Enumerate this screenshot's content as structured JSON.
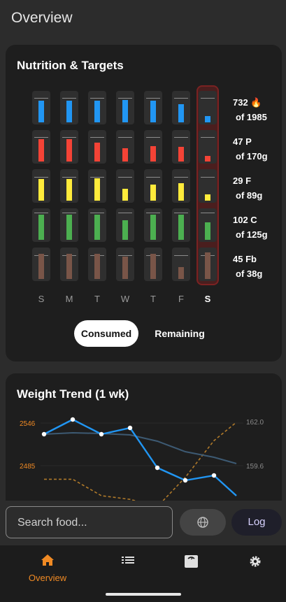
{
  "page": {
    "title": "Overview"
  },
  "nutrition": {
    "title": "Nutrition & Targets",
    "days": [
      "S",
      "M",
      "T",
      "W",
      "T",
      "F",
      "S"
    ],
    "today_index": 6,
    "rows": [
      {
        "key": "calories",
        "color": "#2196f3",
        "line": "732 🔥",
        "sub": "of 1985",
        "fills": [
          0.82,
          0.82,
          0.82,
          0.85,
          0.82,
          0.68,
          0.25
        ],
        "target": 0.84
      },
      {
        "key": "protein",
        "color": "#f44336",
        "line": "47 P",
        "sub": "of 170g",
        "fills": [
          0.85,
          0.85,
          0.72,
          0.5,
          0.58,
          0.55,
          0.2
        ],
        "target": 0.84
      },
      {
        "key": "fat",
        "color": "#ffeb3b",
        "line": "29 F",
        "sub": "of 89g",
        "fills": [
          0.82,
          0.82,
          0.85,
          0.45,
          0.62,
          0.65,
          0.25
        ],
        "target": 0.82
      },
      {
        "key": "carbs",
        "color": "#4caf50",
        "line": "102 C",
        "sub": "of 125g",
        "fills": [
          0.95,
          0.95,
          0.95,
          0.75,
          0.95,
          0.95,
          0.65
        ],
        "target": 0.92
      },
      {
        "key": "fiber",
        "color": "#795548",
        "line": "45 Fb",
        "sub": "of 38g",
        "fills": [
          0.95,
          0.95,
          0.95,
          0.85,
          0.95,
          0.45,
          1.0
        ],
        "target": 0.8
      }
    ],
    "toggle": {
      "consumed": "Consumed",
      "remaining": "Remaining",
      "selected": "Consumed"
    }
  },
  "weight": {
    "title": "Weight Trend (1 wk)",
    "left_ticks": [
      "2546",
      "2485"
    ],
    "right_ticks": [
      "162.0",
      "159.6"
    ],
    "colors": {
      "left_axis": "#f08a24",
      "right_axis": "#8a8a8a",
      "weight_line": "#2196f3",
      "trend_line": "#3d5a73",
      "calorie_line": "#b07a2a"
    }
  },
  "chart_data": {
    "type": "line",
    "title": "Weight Trend (1 wk)",
    "x": [
      1,
      2,
      3,
      4,
      5,
      6,
      7,
      8
    ],
    "series": [
      {
        "values": [
          2530,
          2551,
          2530,
          2539,
          2482,
          2464,
          2471,
          2442
        ],
        "axis": "left"
      },
      {
        "values": [
          2530,
          2532,
          2531,
          2529,
          2520,
          2505,
          2497,
          2488
        ],
        "axis": "left"
      },
      {
        "values": [
          158.9,
          158.9,
          158.0,
          157.8,
          157.4,
          159.0,
          161.0,
          162.0
        ],
        "axis": "right"
      }
    ],
    "left_axis_ticks": [
      2546,
      2485
    ],
    "right_axis_ticks": [
      162.0,
      159.6
    ],
    "grid": true
  },
  "search": {
    "placeholder": "Search food..."
  },
  "actions": {
    "log_label": "Log"
  },
  "nav": {
    "items": [
      {
        "name": "Overview",
        "icon": "home-icon",
        "active": true
      },
      {
        "name": "",
        "icon": "list-icon",
        "active": false
      },
      {
        "name": "",
        "icon": "scale-icon",
        "active": false
      },
      {
        "name": "",
        "icon": "gear-icon",
        "active": false
      }
    ]
  }
}
